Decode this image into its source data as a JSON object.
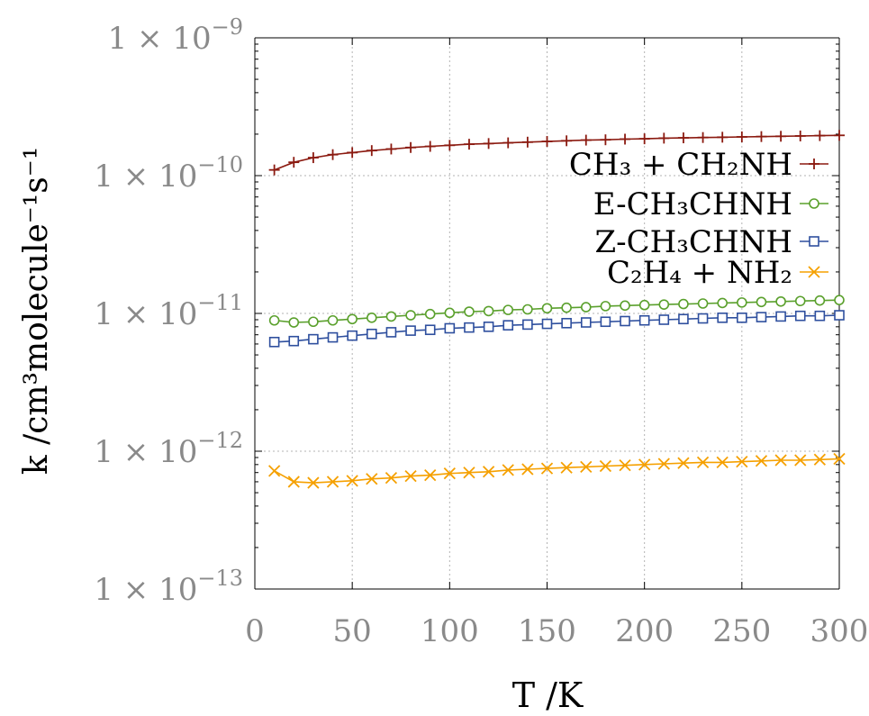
{
  "chart_data": {
    "type": "line",
    "title": "",
    "xlabel": "T /K",
    "ylabel": "k /cm³molecule⁻¹s⁻¹",
    "xlim": [
      0,
      300
    ],
    "ylim": [
      1e-13,
      1e-09
    ],
    "yscale": "log",
    "grid": true,
    "legend_position": "top-right",
    "x_ticks": [
      "0",
      "50",
      "100",
      "150",
      "200",
      "250",
      "300"
    ],
    "y_ticks": [
      {
        "value": 1e-13,
        "mantissa": "1 × 10",
        "exp": "−13"
      },
      {
        "value": 1e-12,
        "mantissa": "1 × 10",
        "exp": "−12"
      },
      {
        "value": 1e-11,
        "mantissa": "1 × 10",
        "exp": "−11"
      },
      {
        "value": 1e-10,
        "mantissa": "1 × 10",
        "exp": "−10"
      },
      {
        "value": 1e-09,
        "mantissa": "1 × 10",
        "exp": "−9"
      }
    ],
    "x": [
      10,
      20,
      30,
      40,
      50,
      60,
      70,
      80,
      90,
      100,
      110,
      120,
      130,
      140,
      150,
      160,
      170,
      180,
      190,
      200,
      210,
      220,
      230,
      240,
      250,
      260,
      270,
      280,
      290,
      300
    ],
    "series": [
      {
        "name": "CH₃ + CH₂NH",
        "color": "#8b1a10",
        "marker": "plus",
        "values": [
          1.1e-10,
          1.25e-10,
          1.35e-10,
          1.42e-10,
          1.47e-10,
          1.52e-10,
          1.56e-10,
          1.6e-10,
          1.63e-10,
          1.66e-10,
          1.69e-10,
          1.71e-10,
          1.73e-10,
          1.75e-10,
          1.77e-10,
          1.79e-10,
          1.81e-10,
          1.82e-10,
          1.84e-10,
          1.85e-10,
          1.87e-10,
          1.88e-10,
          1.89e-10,
          1.9e-10,
          1.91e-10,
          1.92e-10,
          1.93e-10,
          1.94e-10,
          1.95e-10,
          1.96e-10
        ]
      },
      {
        "name": "E-CH₃CHNH",
        "color": "#5aa02c",
        "marker": "circle",
        "values": [
          8.9e-12,
          8.6e-12,
          8.7e-12,
          8.9e-12,
          9.1e-12,
          9.3e-12,
          9.5e-12,
          9.7e-12,
          9.9e-12,
          1.01e-11,
          1.03e-11,
          1.04e-11,
          1.06e-11,
          1.07e-11,
          1.09e-11,
          1.1e-11,
          1.11e-11,
          1.13e-11,
          1.14e-11,
          1.15e-11,
          1.16e-11,
          1.17e-11,
          1.18e-11,
          1.19e-11,
          1.2e-11,
          1.21e-11,
          1.22e-11,
          1.23e-11,
          1.24e-11,
          1.25e-11
        ]
      },
      {
        "name": "Z-CH₃CHNH",
        "color": "#2e4f9e",
        "marker": "square",
        "values": [
          6.2e-12,
          6.3e-12,
          6.5e-12,
          6.7e-12,
          6.9e-12,
          7.1e-12,
          7.3e-12,
          7.5e-12,
          7.6e-12,
          7.8e-12,
          7.9e-12,
          8e-12,
          8.2e-12,
          8.3e-12,
          8.4e-12,
          8.5e-12,
          8.6e-12,
          8.7e-12,
          8.8e-12,
          8.9e-12,
          9e-12,
          9.1e-12,
          9.2e-12,
          9.3e-12,
          9.3e-12,
          9.4e-12,
          9.5e-12,
          9.6e-12,
          9.6e-12,
          9.7e-12
        ]
      },
      {
        "name": "C₂H₄ + NH₂",
        "color": "#f5a000",
        "marker": "cross",
        "values": [
          7.2e-13,
          6e-13,
          5.9e-13,
          6e-13,
          6.1e-13,
          6.3e-13,
          6.4e-13,
          6.6e-13,
          6.7e-13,
          6.9e-13,
          7e-13,
          7.1e-13,
          7.3e-13,
          7.4e-13,
          7.5e-13,
          7.6e-13,
          7.7e-13,
          7.8e-13,
          7.9e-13,
          8e-13,
          8.1e-13,
          8.2e-13,
          8.3e-13,
          8.3e-13,
          8.4e-13,
          8.5e-13,
          8.6e-13,
          8.6e-13,
          8.7e-13,
          8.8e-13
        ]
      }
    ]
  }
}
